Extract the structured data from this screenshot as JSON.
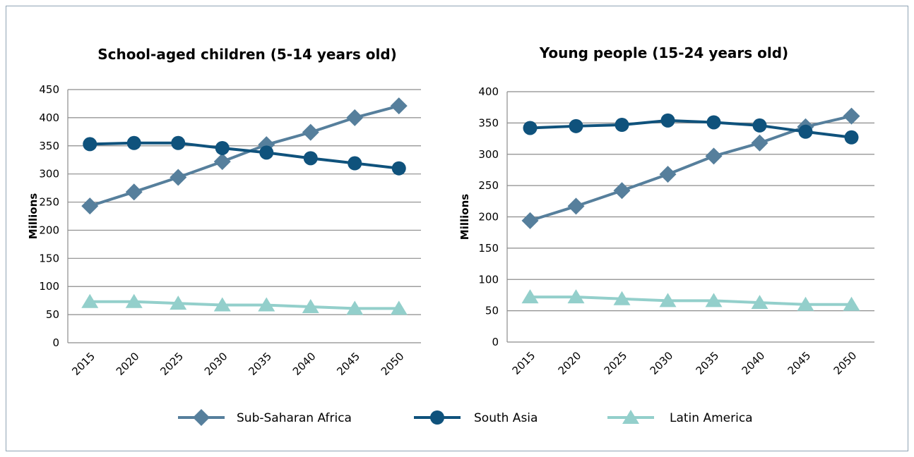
{
  "chart_data": [
    {
      "type": "line",
      "title": "School-aged children (5-14 years old)",
      "ylabel": "Millions",
      "xlabel": "",
      "categories": [
        "2015",
        "2020",
        "2025",
        "2030",
        "2035",
        "2040",
        "2045",
        "2050"
      ],
      "ylim": [
        0,
        450
      ],
      "yticks": [
        0,
        50,
        100,
        150,
        200,
        250,
        300,
        350,
        400,
        450
      ],
      "grid": true,
      "series": [
        {
          "name": "Sub-Saharan Africa",
          "values": [
            243,
            268,
            294,
            322,
            352,
            374,
            400,
            421
          ]
        },
        {
          "name": "South Asia",
          "values": [
            353,
            355,
            355,
            346,
            338,
            328,
            319,
            310
          ]
        },
        {
          "name": "Latin America",
          "values": [
            73,
            73,
            70,
            67,
            67,
            64,
            61,
            61
          ]
        }
      ]
    },
    {
      "type": "line",
      "title": "Young people (15-24 years old)",
      "ylabel": "Millions",
      "xlabel": "",
      "categories": [
        "2015",
        "2020",
        "2025",
        "2030",
        "2035",
        "2040",
        "2045",
        "2050"
      ],
      "ylim": [
        0,
        400
      ],
      "yticks": [
        0,
        50,
        100,
        150,
        200,
        250,
        300,
        350,
        400
      ],
      "grid": true,
      "series": [
        {
          "name": "Sub-Saharan Africa",
          "values": [
            194,
            217,
            242,
            268,
            297,
            318,
            344,
            361
          ]
        },
        {
          "name": "South Asia",
          "values": [
            342,
            345,
            347,
            354,
            351,
            346,
            336,
            327
          ]
        },
        {
          "name": "Latin America",
          "values": [
            72,
            72,
            69,
            66,
            66,
            63,
            60,
            60
          ]
        }
      ]
    }
  ],
  "legend": {
    "placement": "bottom",
    "items": [
      {
        "label": "Sub-Saharan Africa",
        "marker": "diamond",
        "color": "#567f9c"
      },
      {
        "label": "South Asia",
        "marker": "circle",
        "color": "#0f527c"
      },
      {
        "label": "Latin America",
        "marker": "triangle",
        "color": "#93cfcb"
      }
    ]
  },
  "colors": {
    "sub_saharan_africa": "#567f9c",
    "south_asia": "#0f527c",
    "latin_america": "#93cfcb",
    "grid": "#8c8c8c",
    "frame_border": "#8fa4b4"
  }
}
